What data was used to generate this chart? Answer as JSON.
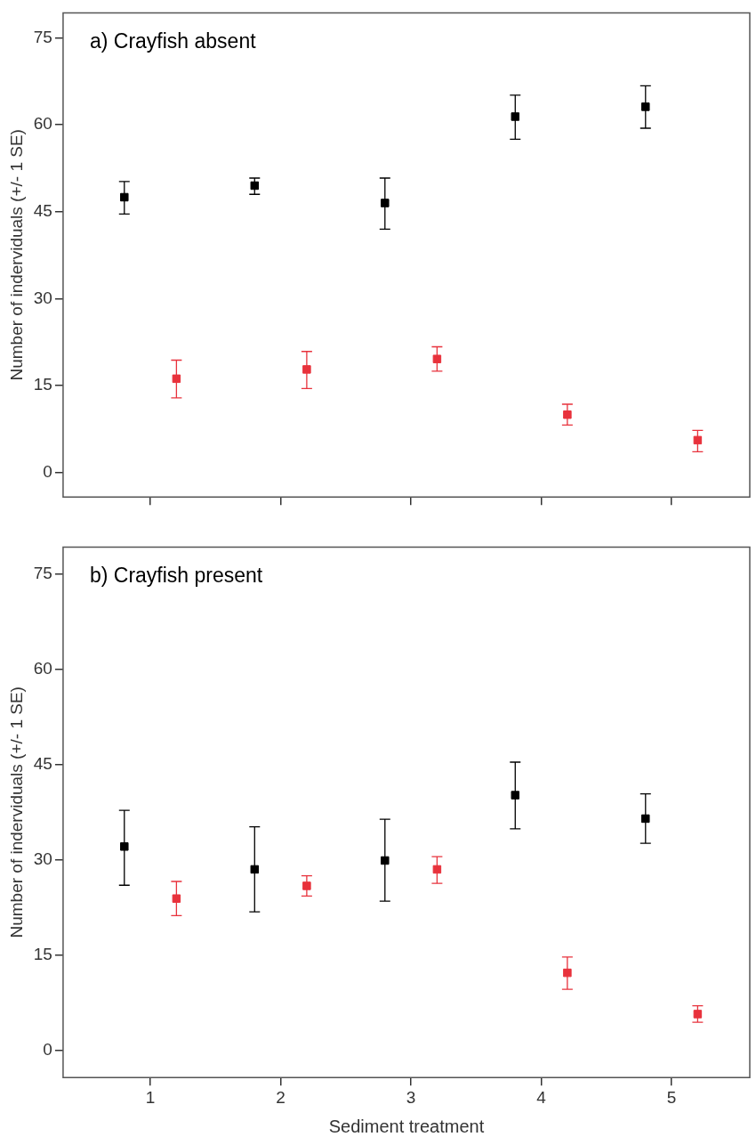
{
  "chart_data": [
    {
      "type": "scatter",
      "title": "a) Crayfish absent",
      "ylabel": "Number of inderviduals (+/- 1 SE)",
      "xlim": [
        0.33,
        5.6
      ],
      "xticks": [
        {
          "value": 1,
          "label": null
        },
        {
          "value": 2,
          "label": null
        },
        {
          "value": 3,
          "label": null
        },
        {
          "value": 4,
          "label": null
        },
        {
          "value": 5,
          "label": null
        }
      ],
      "ylim": [
        -4.2,
        79.3
      ],
      "yticks": [
        0,
        15,
        30,
        45,
        60,
        75
      ],
      "tick_labels": "y",
      "grid": false,
      "legend": false,
      "marker": "square",
      "series": [
        {
          "color": "#000000",
          "x": [
            0.8,
            1.8,
            2.8,
            3.8,
            4.8
          ],
          "values": [
            47.5,
            49.5,
            46.5,
            61.4,
            63.1
          ],
          "errors": [
            [
              44.6,
              50.2
            ],
            [
              48.0,
              50.8
            ],
            [
              42.0,
              50.8
            ],
            [
              57.5,
              65.1
            ],
            [
              59.4,
              66.7
            ]
          ]
        },
        {
          "color": "#e8323c",
          "x": [
            1.2,
            2.2,
            3.2,
            4.2,
            5.2
          ],
          "values": [
            16.2,
            17.8,
            19.6,
            10.0,
            5.6
          ],
          "errors": [
            [
              12.9,
              19.4
            ],
            [
              14.5,
              20.9
            ],
            [
              17.5,
              21.7
            ],
            [
              8.2,
              11.8
            ],
            [
              3.6,
              7.3
            ]
          ]
        }
      ]
    },
    {
      "type": "scatter",
      "title": "b) Crayfish present",
      "xlabel": "Sediment treatment",
      "ylabel": "Number of inderviduals (+/- 1 SE)",
      "xlim": [
        0.33,
        5.6
      ],
      "xticks": [
        1,
        2,
        3,
        4,
        5
      ],
      "ylim": [
        -4.3,
        79.3
      ],
      "yticks": [
        0,
        15,
        30,
        45,
        60,
        75
      ],
      "grid": false,
      "legend": false,
      "marker": "square",
      "series": [
        {
          "color": "#000000",
          "x": [
            0.8,
            1.8,
            2.8,
            3.8,
            4.8
          ],
          "values": [
            32.1,
            28.5,
            29.9,
            40.2,
            36.5
          ],
          "errors": [
            [
              26.0,
              37.8
            ],
            [
              21.8,
              35.2
            ],
            [
              23.5,
              36.4
            ],
            [
              34.9,
              45.4
            ],
            [
              32.6,
              40.4
            ]
          ]
        },
        {
          "color": "#e8323c",
          "x": [
            1.2,
            2.2,
            3.2,
            4.2,
            5.2
          ],
          "values": [
            23.9,
            25.9,
            28.5,
            12.2,
            5.7
          ],
          "errors": [
            [
              21.2,
              26.6
            ],
            [
              24.3,
              27.5
            ],
            [
              26.3,
              30.5
            ],
            [
              9.6,
              14.7
            ],
            [
              4.4,
              7.0
            ]
          ]
        }
      ]
    }
  ]
}
